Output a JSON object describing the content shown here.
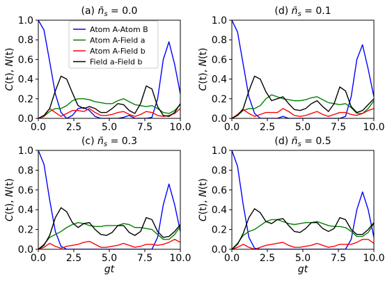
{
  "figure": {
    "legend_panel": 0
  },
  "chart_data": [
    {
      "type": "line",
      "title": "(a) n̄s = 0.0",
      "title_parts": {
        "prefix": "(a) ",
        "n": "n̄",
        "sub": "s",
        "eq": " = 0.0"
      },
      "xlabel": "",
      "ylabel": "C(t), N(t)",
      "ylabel_parts": [
        "C",
        "(t), ",
        "N",
        "(t)"
      ],
      "xlim": [
        0,
        10
      ],
      "ylim": [
        0,
        1
      ],
      "xticks": [
        "0.0",
        "2.5",
        "5.0",
        "7.5",
        "10.0"
      ],
      "yticks": [
        "0.0",
        "0.2",
        "0.4",
        "0.6",
        "0.8",
        "1.0"
      ],
      "legend": "top-left",
      "series": [
        {
          "name": "Atom A-Atom B",
          "color": "#0000ff",
          "x": [
            0,
            0.4,
            0.8,
            1.2,
            1.6,
            2.0,
            2.4,
            2.8,
            3.2,
            3.6,
            4.0,
            4.4,
            4.8,
            5.2,
            5.6,
            6.0,
            6.4,
            6.8,
            7.2,
            7.6,
            8.0,
            8.4,
            8.8,
            9.2,
            9.6,
            10.0
          ],
          "y": [
            1.0,
            0.9,
            0.58,
            0.25,
            0.06,
            0.0,
            0.03,
            0.1,
            0.11,
            0.08,
            0.02,
            0.0,
            0.0,
            0.0,
            0.0,
            0.01,
            0.03,
            0.0,
            0.0,
            0.0,
            0.01,
            0.2,
            0.6,
            0.78,
            0.55,
            0.25
          ]
        },
        {
          "name": "Atom A-Field a",
          "color": "#008000",
          "x": [
            0,
            0.4,
            0.8,
            1.2,
            1.6,
            2.0,
            2.4,
            2.8,
            3.2,
            3.6,
            4.0,
            4.4,
            4.8,
            5.2,
            5.6,
            6.0,
            6.4,
            6.8,
            7.2,
            7.6,
            8.0,
            8.4,
            8.8,
            9.2,
            9.6,
            10.0
          ],
          "y": [
            0.0,
            0.02,
            0.07,
            0.1,
            0.1,
            0.13,
            0.18,
            0.2,
            0.2,
            0.19,
            0.17,
            0.16,
            0.15,
            0.15,
            0.18,
            0.2,
            0.17,
            0.14,
            0.13,
            0.12,
            0.13,
            0.1,
            0.06,
            0.05,
            0.08,
            0.14
          ]
        },
        {
          "name": "Atom A-Field b",
          "color": "#ff0000",
          "x": [
            0,
            0.4,
            0.8,
            1.2,
            1.6,
            2.0,
            2.4,
            2.8,
            3.2,
            3.6,
            4.0,
            4.4,
            4.8,
            5.2,
            5.6,
            6.0,
            6.4,
            6.8,
            7.2,
            7.6,
            8.0,
            8.4,
            8.8,
            9.2,
            9.6,
            10.0
          ],
          "y": [
            0.0,
            0.02,
            0.1,
            0.06,
            0.02,
            0.05,
            0.08,
            0.08,
            0.07,
            0.1,
            0.06,
            0.03,
            0.03,
            0.04,
            0.06,
            0.07,
            0.04,
            0.02,
            0.04,
            0.07,
            0.06,
            0.03,
            0.02,
            0.03,
            0.05,
            0.1
          ]
        },
        {
          "name": "Field a-Field b",
          "color": "#000000",
          "x": [
            0,
            0.4,
            0.8,
            1.2,
            1.6,
            2.0,
            2.4,
            2.8,
            3.2,
            3.6,
            4.0,
            4.4,
            4.8,
            5.2,
            5.6,
            6.0,
            6.4,
            6.8,
            7.2,
            7.6,
            8.0,
            8.4,
            8.8,
            9.2,
            9.6,
            10.0
          ],
          "y": [
            0.0,
            0.03,
            0.1,
            0.28,
            0.43,
            0.4,
            0.26,
            0.13,
            0.1,
            0.12,
            0.1,
            0.06,
            0.06,
            0.1,
            0.15,
            0.14,
            0.08,
            0.05,
            0.15,
            0.33,
            0.3,
            0.12,
            0.03,
            0.02,
            0.06,
            0.15
          ]
        }
      ]
    },
    {
      "type": "line",
      "title": "(d) n̄s = 0.1",
      "title_parts": {
        "prefix": "(d) ",
        "n": "n̄",
        "sub": "s",
        "eq": " = 0.1"
      },
      "xlabel": "",
      "ylabel": "C(t), N(t)",
      "ylabel_parts": [
        "C",
        "(t), ",
        "N",
        "(t)"
      ],
      "xlim": [
        0,
        10
      ],
      "ylim": [
        0,
        1
      ],
      "xticks": [
        "0.0",
        "2.5",
        "5.0",
        "7.5",
        "10.0"
      ],
      "yticks": [
        "0.0",
        "0.2",
        "0.4",
        "0.6",
        "0.8",
        "1.0"
      ],
      "series": [
        {
          "name": "Atom A-Atom B",
          "color": "#0000ff",
          "x": [
            0,
            0.4,
            0.8,
            1.2,
            1.6,
            2.0,
            2.4,
            2.8,
            3.2,
            3.6,
            4.0,
            4.4,
            4.8,
            5.2,
            5.6,
            6.0,
            6.4,
            6.8,
            7.2,
            7.6,
            8.0,
            8.4,
            8.8,
            9.2,
            9.6,
            10.0
          ],
          "y": [
            1.0,
            0.88,
            0.55,
            0.22,
            0.05,
            0.0,
            0.0,
            0.0,
            0.0,
            0.02,
            0.0,
            0.0,
            0.0,
            0.0,
            0.0,
            0.0,
            0.0,
            0.0,
            0.0,
            0.0,
            0.02,
            0.22,
            0.6,
            0.75,
            0.5,
            0.22
          ]
        },
        {
          "name": "Atom A-Field a",
          "color": "#008000",
          "x": [
            0,
            0.4,
            0.8,
            1.2,
            1.6,
            2.0,
            2.4,
            2.8,
            3.2,
            3.6,
            4.0,
            4.4,
            4.8,
            5.2,
            5.6,
            6.0,
            6.4,
            6.8,
            7.2,
            7.6,
            8.0,
            8.4,
            8.8,
            9.2,
            9.6,
            10.0
          ],
          "y": [
            0.0,
            0.03,
            0.08,
            0.1,
            0.1,
            0.13,
            0.2,
            0.24,
            0.22,
            0.2,
            0.19,
            0.18,
            0.18,
            0.19,
            0.21,
            0.22,
            0.19,
            0.16,
            0.15,
            0.14,
            0.15,
            0.11,
            0.05,
            0.05,
            0.1,
            0.18
          ]
        },
        {
          "name": "Atom A-Field b",
          "color": "#ff0000",
          "x": [
            0,
            0.4,
            0.8,
            1.2,
            1.6,
            2.0,
            2.4,
            2.8,
            3.2,
            3.6,
            4.0,
            4.4,
            4.8,
            5.2,
            5.6,
            6.0,
            6.4,
            6.8,
            7.2,
            7.6,
            8.0,
            8.4,
            8.8,
            9.2,
            9.6,
            10.0
          ],
          "y": [
            0.0,
            0.04,
            0.09,
            0.05,
            0.02,
            0.04,
            0.06,
            0.06,
            0.06,
            0.1,
            0.07,
            0.03,
            0.02,
            0.03,
            0.05,
            0.07,
            0.04,
            0.02,
            0.04,
            0.06,
            0.06,
            0.04,
            0.03,
            0.05,
            0.08,
            0.1
          ]
        },
        {
          "name": "Field a-Field b",
          "color": "#000000",
          "x": [
            0,
            0.4,
            0.8,
            1.2,
            1.6,
            2.0,
            2.4,
            2.8,
            3.2,
            3.6,
            4.0,
            4.4,
            4.8,
            5.2,
            5.6,
            6.0,
            6.4,
            6.8,
            7.2,
            7.6,
            8.0,
            8.4,
            8.8,
            9.2,
            9.6,
            10.0
          ],
          "y": [
            0.0,
            0.03,
            0.1,
            0.28,
            0.43,
            0.4,
            0.27,
            0.18,
            0.2,
            0.22,
            0.15,
            0.09,
            0.08,
            0.1,
            0.15,
            0.18,
            0.12,
            0.07,
            0.15,
            0.32,
            0.28,
            0.12,
            0.06,
            0.08,
            0.14,
            0.2
          ]
        }
      ]
    },
    {
      "type": "line",
      "title": "(c) n̄s = 0.3",
      "title_parts": {
        "prefix": "(c) ",
        "n": "n̄",
        "sub": "s",
        "eq": " = 0.3"
      },
      "xlabel": "gt",
      "ylabel": "C(t), N(t)",
      "ylabel_parts": [
        "C",
        "(t), ",
        "N",
        "(t)"
      ],
      "xlim": [
        0,
        10
      ],
      "ylim": [
        0,
        1
      ],
      "xticks": [
        "0.0",
        "2.5",
        "5.0",
        "7.5",
        "10.0"
      ],
      "yticks": [
        "0.0",
        "0.2",
        "0.4",
        "0.6",
        "0.8",
        "1.0"
      ],
      "series": [
        {
          "name": "Atom A-Atom B",
          "color": "#0000ff",
          "x": [
            0,
            0.4,
            0.8,
            1.2,
            1.6,
            2.0,
            2.4,
            2.8,
            3.2,
            3.6,
            4.0,
            4.4,
            4.8,
            5.2,
            5.6,
            6.0,
            6.4,
            6.8,
            7.2,
            7.6,
            8.0,
            8.4,
            8.8,
            9.2,
            9.6,
            10.0
          ],
          "y": [
            1.0,
            0.86,
            0.5,
            0.18,
            0.03,
            0.0,
            0.0,
            0.0,
            0.0,
            0.0,
            0.0,
            0.0,
            0.0,
            0.0,
            0.0,
            0.0,
            0.0,
            0.0,
            0.0,
            0.0,
            0.0,
            0.12,
            0.45,
            0.66,
            0.45,
            0.18
          ]
        },
        {
          "name": "Atom A-Field a",
          "color": "#008000",
          "x": [
            0,
            0.4,
            0.8,
            1.2,
            1.6,
            2.0,
            2.4,
            2.8,
            3.2,
            3.6,
            4.0,
            4.4,
            4.8,
            5.2,
            5.6,
            6.0,
            6.4,
            6.8,
            7.2,
            7.6,
            8.0,
            8.4,
            8.8,
            9.2,
            9.6,
            10.0
          ],
          "y": [
            0.0,
            0.05,
            0.12,
            0.15,
            0.18,
            0.22,
            0.25,
            0.27,
            0.26,
            0.24,
            0.23,
            0.23,
            0.24,
            0.24,
            0.24,
            0.26,
            0.25,
            0.22,
            0.22,
            0.21,
            0.2,
            0.15,
            0.1,
            0.1,
            0.15,
            0.23
          ]
        },
        {
          "name": "Atom A-Field b",
          "color": "#ff0000",
          "x": [
            0,
            0.4,
            0.8,
            1.2,
            1.6,
            2.0,
            2.4,
            2.8,
            3.2,
            3.6,
            4.0,
            4.4,
            4.8,
            5.2,
            5.6,
            6.0,
            6.4,
            6.8,
            7.2,
            7.6,
            8.0,
            8.4,
            8.8,
            9.2,
            9.6,
            10.0
          ],
          "y": [
            0.0,
            0.02,
            0.06,
            0.03,
            0.01,
            0.03,
            0.04,
            0.05,
            0.07,
            0.08,
            0.05,
            0.02,
            0.02,
            0.03,
            0.04,
            0.06,
            0.04,
            0.02,
            0.03,
            0.05,
            0.05,
            0.04,
            0.05,
            0.07,
            0.1,
            0.07
          ]
        },
        {
          "name": "Field a-Field b",
          "color": "#000000",
          "x": [
            0,
            0.4,
            0.8,
            1.2,
            1.6,
            2.0,
            2.4,
            2.8,
            3.2,
            3.6,
            4.0,
            4.4,
            4.8,
            5.2,
            5.6,
            6.0,
            6.4,
            6.8,
            7.2,
            7.6,
            8.0,
            8.4,
            8.8,
            9.2,
            9.6,
            10.0
          ],
          "y": [
            0.0,
            0.04,
            0.14,
            0.32,
            0.42,
            0.38,
            0.27,
            0.22,
            0.26,
            0.27,
            0.2,
            0.15,
            0.14,
            0.17,
            0.24,
            0.24,
            0.17,
            0.14,
            0.18,
            0.32,
            0.3,
            0.18,
            0.12,
            0.13,
            0.18,
            0.25
          ]
        }
      ]
    },
    {
      "type": "line",
      "title": "(d) n̄s = 0.5",
      "title_parts": {
        "prefix": "(d) ",
        "n": "n̄",
        "sub": "s",
        "eq": " = 0.5"
      },
      "xlabel": "gt",
      "ylabel": "C(t), N(t)",
      "ylabel_parts": [
        "C",
        "(t), ",
        "N",
        "(t)"
      ],
      "xlim": [
        0,
        10
      ],
      "ylim": [
        0,
        1
      ],
      "xticks": [
        "0.0",
        "2.5",
        "5.0",
        "7.5",
        "10.0"
      ],
      "yticks": [
        "0.0",
        "0.2",
        "0.4",
        "0.6",
        "0.8",
        "1.0"
      ],
      "series": [
        {
          "name": "Atom A-Atom B",
          "color": "#0000ff",
          "x": [
            0,
            0.4,
            0.8,
            1.2,
            1.6,
            2.0,
            2.4,
            2.8,
            3.2,
            3.6,
            4.0,
            4.4,
            4.8,
            5.2,
            5.6,
            6.0,
            6.4,
            6.8,
            7.2,
            7.6,
            8.0,
            8.4,
            8.8,
            9.2,
            9.6,
            10.0
          ],
          "y": [
            1.0,
            0.84,
            0.45,
            0.12,
            0.01,
            0.0,
            0.0,
            0.0,
            0.0,
            0.0,
            0.0,
            0.0,
            0.0,
            0.0,
            0.0,
            0.0,
            0.0,
            0.0,
            0.0,
            0.0,
            0.0,
            0.1,
            0.4,
            0.58,
            0.4,
            0.12
          ]
        },
        {
          "name": "Atom A-Field a",
          "color": "#008000",
          "x": [
            0,
            0.4,
            0.8,
            1.2,
            1.6,
            2.0,
            2.4,
            2.8,
            3.2,
            3.6,
            4.0,
            4.4,
            4.8,
            5.2,
            5.6,
            6.0,
            6.4,
            6.8,
            7.2,
            7.6,
            8.0,
            8.4,
            8.8,
            9.2,
            9.6,
            10.0
          ],
          "y": [
            0.0,
            0.06,
            0.14,
            0.18,
            0.2,
            0.24,
            0.28,
            0.3,
            0.3,
            0.28,
            0.26,
            0.25,
            0.26,
            0.27,
            0.27,
            0.28,
            0.26,
            0.24,
            0.23,
            0.23,
            0.22,
            0.18,
            0.13,
            0.13,
            0.17,
            0.26
          ]
        },
        {
          "name": "Atom A-Field b",
          "color": "#ff0000",
          "x": [
            0,
            0.4,
            0.8,
            1.2,
            1.6,
            2.0,
            2.4,
            2.8,
            3.2,
            3.6,
            4.0,
            4.4,
            4.8,
            5.2,
            5.6,
            6.0,
            6.4,
            6.8,
            7.2,
            7.6,
            8.0,
            8.4,
            8.8,
            9.2,
            9.6,
            10.0
          ],
          "y": [
            0.0,
            0.02,
            0.05,
            0.02,
            0.0,
            0.02,
            0.04,
            0.05,
            0.06,
            0.07,
            0.04,
            0.02,
            0.02,
            0.03,
            0.04,
            0.06,
            0.04,
            0.02,
            0.03,
            0.05,
            0.05,
            0.05,
            0.07,
            0.1,
            0.1,
            0.06
          ]
        },
        {
          "name": "Field a-Field b",
          "color": "#000000",
          "x": [
            0,
            0.4,
            0.8,
            1.2,
            1.6,
            2.0,
            2.4,
            2.8,
            3.2,
            3.6,
            4.0,
            4.4,
            4.8,
            5.2,
            5.6,
            6.0,
            6.4,
            6.8,
            7.2,
            7.6,
            8.0,
            8.4,
            8.8,
            9.2,
            9.6,
            10.0
          ],
          "y": [
            0.0,
            0.05,
            0.16,
            0.32,
            0.41,
            0.37,
            0.28,
            0.26,
            0.3,
            0.31,
            0.24,
            0.18,
            0.17,
            0.21,
            0.27,
            0.27,
            0.21,
            0.18,
            0.21,
            0.32,
            0.3,
            0.2,
            0.15,
            0.15,
            0.2,
            0.27
          ]
        }
      ]
    }
  ]
}
